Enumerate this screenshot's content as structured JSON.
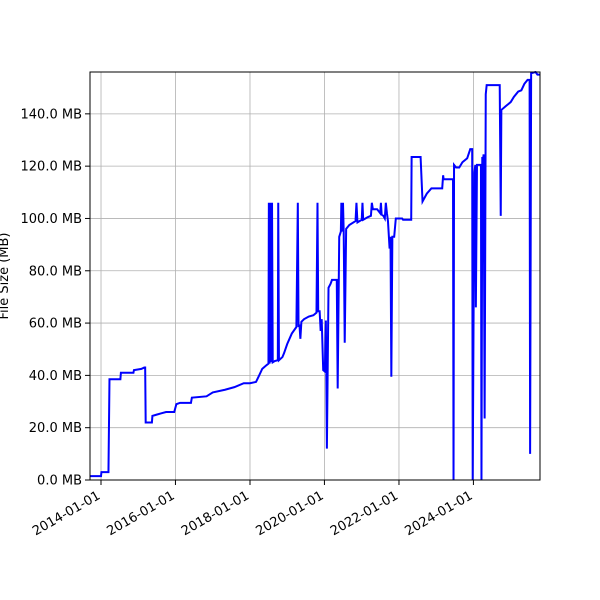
{
  "chart_data": {
    "type": "line",
    "title": "",
    "xlabel": "",
    "ylabel": "File Size (MB)",
    "xlim": [
      "2013-09-15",
      "2025-10-15"
    ],
    "ylim": [
      0,
      156
    ],
    "grid": true,
    "legend": "none",
    "y_ticks": [
      {
        "value": 0,
        "label": "0.0 MB"
      },
      {
        "value": 20,
        "label": "20.0 MB"
      },
      {
        "value": 40,
        "label": "40.0 MB"
      },
      {
        "value": 60,
        "label": "60.0 MB"
      },
      {
        "value": 80,
        "label": "80.0 MB"
      },
      {
        "value": 100,
        "label": "100.0 MB"
      },
      {
        "value": 120,
        "label": "120.0 MB"
      },
      {
        "value": 140,
        "label": "140.0 MB"
      }
    ],
    "x_ticks": [
      {
        "value": "2014-01-01",
        "label": "2014-01-01"
      },
      {
        "value": "2016-01-01",
        "label": "2016-01-01"
      },
      {
        "value": "2018-01-01",
        "label": "2018-01-01"
      },
      {
        "value": "2020-01-01",
        "label": "2020-01-01"
      },
      {
        "value": "2022-01-01",
        "label": "2022-01-01"
      },
      {
        "value": "2024-01-01",
        "label": "2024-01-01"
      }
    ],
    "series": [
      {
        "color": "#0000ff",
        "points": [
          [
            "2013-09-15",
            1.5
          ],
          [
            "2014-01-01",
            1.5
          ],
          [
            "2014-01-05",
            3.0
          ],
          [
            "2014-03-15",
            3.0
          ],
          [
            "2014-03-25",
            38.5
          ],
          [
            "2014-07-10",
            38.5
          ],
          [
            "2014-07-15",
            41.0
          ],
          [
            "2014-11-15",
            41.0
          ],
          [
            "2014-11-20",
            42.0
          ],
          [
            "2015-02-01",
            42.5
          ],
          [
            "2015-03-01",
            43.0
          ],
          [
            "2015-03-10",
            43.0
          ],
          [
            "2015-03-15",
            22.0
          ],
          [
            "2015-05-15",
            22.0
          ],
          [
            "2015-05-20",
            24.5
          ],
          [
            "2015-07-01",
            25.0
          ],
          [
            "2015-08-15",
            25.5
          ],
          [
            "2015-10-01",
            26.0
          ],
          [
            "2015-12-20",
            26.0
          ],
          [
            "2016-01-10",
            29.0
          ],
          [
            "2016-02-15",
            29.5
          ],
          [
            "2016-06-01",
            29.5
          ],
          [
            "2016-06-10",
            31.5
          ],
          [
            "2016-11-01",
            32.0
          ],
          [
            "2017-01-01",
            33.5
          ],
          [
            "2017-05-01",
            34.5
          ],
          [
            "2017-08-01",
            35.5
          ],
          [
            "2017-11-01",
            37.0
          ],
          [
            "2018-01-01",
            37.0
          ],
          [
            "2018-03-01",
            37.5
          ],
          [
            "2018-04-01",
            40.0
          ],
          [
            "2018-05-01",
            42.5
          ],
          [
            "2018-06-15",
            44.0
          ],
          [
            "2018-07-01",
            44.5
          ],
          [
            "2018-07-05",
            106.0
          ],
          [
            "2018-07-12",
            44.5
          ],
          [
            "2018-07-20",
            106.0
          ],
          [
            "2018-07-28",
            45.0
          ],
          [
            "2018-08-05",
            106.0
          ],
          [
            "2018-08-12",
            45.0
          ],
          [
            "2018-09-01",
            45.5
          ],
          [
            "2018-10-01",
            45.8
          ],
          [
            "2018-10-05",
            106.0
          ],
          [
            "2018-10-12",
            45.8
          ],
          [
            "2018-11-15",
            47.0
          ],
          [
            "2018-12-01",
            48.5
          ],
          [
            "2019-01-01",
            52.0
          ],
          [
            "2019-02-15",
            56.0
          ],
          [
            "2019-04-01",
            58.5
          ],
          [
            "2019-04-15",
            106.0
          ],
          [
            "2019-04-22",
            58.5
          ],
          [
            "2019-05-01",
            59.5
          ],
          [
            "2019-05-10",
            54.0
          ],
          [
            "2019-05-20",
            60.5
          ],
          [
            "2019-06-15",
            61.5
          ],
          [
            "2019-08-01",
            62.5
          ],
          [
            "2019-09-15",
            63.0
          ],
          [
            "2019-10-15",
            64.0
          ],
          [
            "2019-10-25",
            106.0
          ],
          [
            "2019-11-01",
            64.5
          ],
          [
            "2019-11-15",
            64.5
          ],
          [
            "2019-11-25",
            57.0
          ],
          [
            "2019-12-05",
            61.5
          ],
          [
            "2019-12-20",
            42.0
          ],
          [
            "2020-01-05",
            41.5
          ],
          [
            "2020-01-15",
            61.0
          ],
          [
            "2020-01-25",
            12.0
          ],
          [
            "2020-02-10",
            73.5
          ],
          [
            "2020-03-01",
            75.0
          ],
          [
            "2020-03-15",
            76.5
          ],
          [
            "2020-05-01",
            76.5
          ],
          [
            "2020-05-10",
            35.0
          ],
          [
            "2020-05-25",
            93.0
          ],
          [
            "2020-06-10",
            95.0
          ],
          [
            "2020-06-15",
            106.0
          ],
          [
            "2020-06-20",
            95.0
          ],
          [
            "2020-07-01",
            106.0
          ],
          [
            "2020-07-08",
            95.0
          ],
          [
            "2020-07-18",
            52.5
          ],
          [
            "2020-08-01",
            96.0
          ],
          [
            "2020-09-01",
            97.5
          ],
          [
            "2020-11-01",
            99.0
          ],
          [
            "2020-11-10",
            106.0
          ],
          [
            "2020-11-20",
            98.5
          ],
          [
            "2021-01-01",
            99.5
          ],
          [
            "2021-01-08",
            106.0
          ],
          [
            "2021-01-15",
            99.5
          ],
          [
            "2021-03-01",
            100.5
          ],
          [
            "2021-04-01",
            101.0
          ],
          [
            "2021-04-10",
            106.0
          ],
          [
            "2021-04-20",
            103.5
          ],
          [
            "2021-06-01",
            103.5
          ],
          [
            "2021-07-01",
            102.0
          ],
          [
            "2021-07-08",
            106.0
          ],
          [
            "2021-07-15",
            101.5
          ],
          [
            "2021-08-01",
            101.0
          ],
          [
            "2021-08-15",
            100.0
          ],
          [
            "2021-08-25",
            106.0
          ],
          [
            "2021-09-05",
            102.0
          ],
          [
            "2021-09-15",
            99.0
          ],
          [
            "2021-10-01",
            88.5
          ],
          [
            "2021-10-10",
            93.0
          ],
          [
            "2021-10-18",
            39.5
          ],
          [
            "2021-10-28",
            93.0
          ],
          [
            "2021-11-15",
            93.0
          ],
          [
            "2021-12-01",
            100.0
          ],
          [
            "2022-02-01",
            100.0
          ],
          [
            "2022-02-10",
            99.5
          ],
          [
            "2022-05-01",
            99.5
          ],
          [
            "2022-05-05",
            123.5
          ],
          [
            "2022-08-01",
            123.5
          ],
          [
            "2022-08-20",
            106.5
          ],
          [
            "2022-10-01",
            109.5
          ],
          [
            "2022-11-15",
            111.5
          ],
          [
            "2023-03-01",
            111.5
          ],
          [
            "2023-03-10",
            116.5
          ],
          [
            "2023-03-15",
            115.0
          ],
          [
            "2023-06-15",
            115.0
          ],
          [
            "2023-06-20",
            0.0
          ],
          [
            "2023-06-25",
            120.5
          ],
          [
            "2023-07-15",
            119.5
          ],
          [
            "2023-08-15",
            119.5
          ],
          [
            "2023-09-15",
            121.5
          ],
          [
            "2023-11-01",
            123.0
          ],
          [
            "2023-12-01",
            126.5
          ],
          [
            "2023-12-20",
            126.5
          ],
          [
            "2023-12-25",
            0.0
          ],
          [
            "2024-01-10",
            117.5
          ],
          [
            "2024-01-20",
            120.5
          ],
          [
            "2024-01-25",
            66.0
          ],
          [
            "2024-02-05",
            120.5
          ],
          [
            "2024-03-15",
            120.5
          ],
          [
            "2024-03-20",
            0.0
          ],
          [
            "2024-03-28",
            123.5
          ],
          [
            "2024-04-05",
            122.5
          ],
          [
            "2024-04-10",
            124.5
          ],
          [
            "2024-04-20",
            23.5
          ],
          [
            "2024-05-01",
            147.5
          ],
          [
            "2024-05-10",
            151.0
          ],
          [
            "2024-09-15",
            151.0
          ],
          [
            "2024-09-25",
            101.0
          ],
          [
            "2024-10-01",
            141.5
          ],
          [
            "2024-11-15",
            143.0
          ],
          [
            "2025-01-01",
            144.5
          ],
          [
            "2025-02-01",
            146.5
          ],
          [
            "2025-03-15",
            148.5
          ],
          [
            "2025-04-15",
            149.0
          ],
          [
            "2025-05-15",
            151.5
          ],
          [
            "2025-06-15",
            153.0
          ],
          [
            "2025-07-05",
            153.0
          ],
          [
            "2025-07-10",
            10.0
          ],
          [
            "2025-07-20",
            155.5
          ],
          [
            "2025-09-01",
            156.0
          ],
          [
            "2025-09-20",
            155.0
          ],
          [
            "2025-10-15",
            155.0
          ]
        ]
      }
    ]
  }
}
